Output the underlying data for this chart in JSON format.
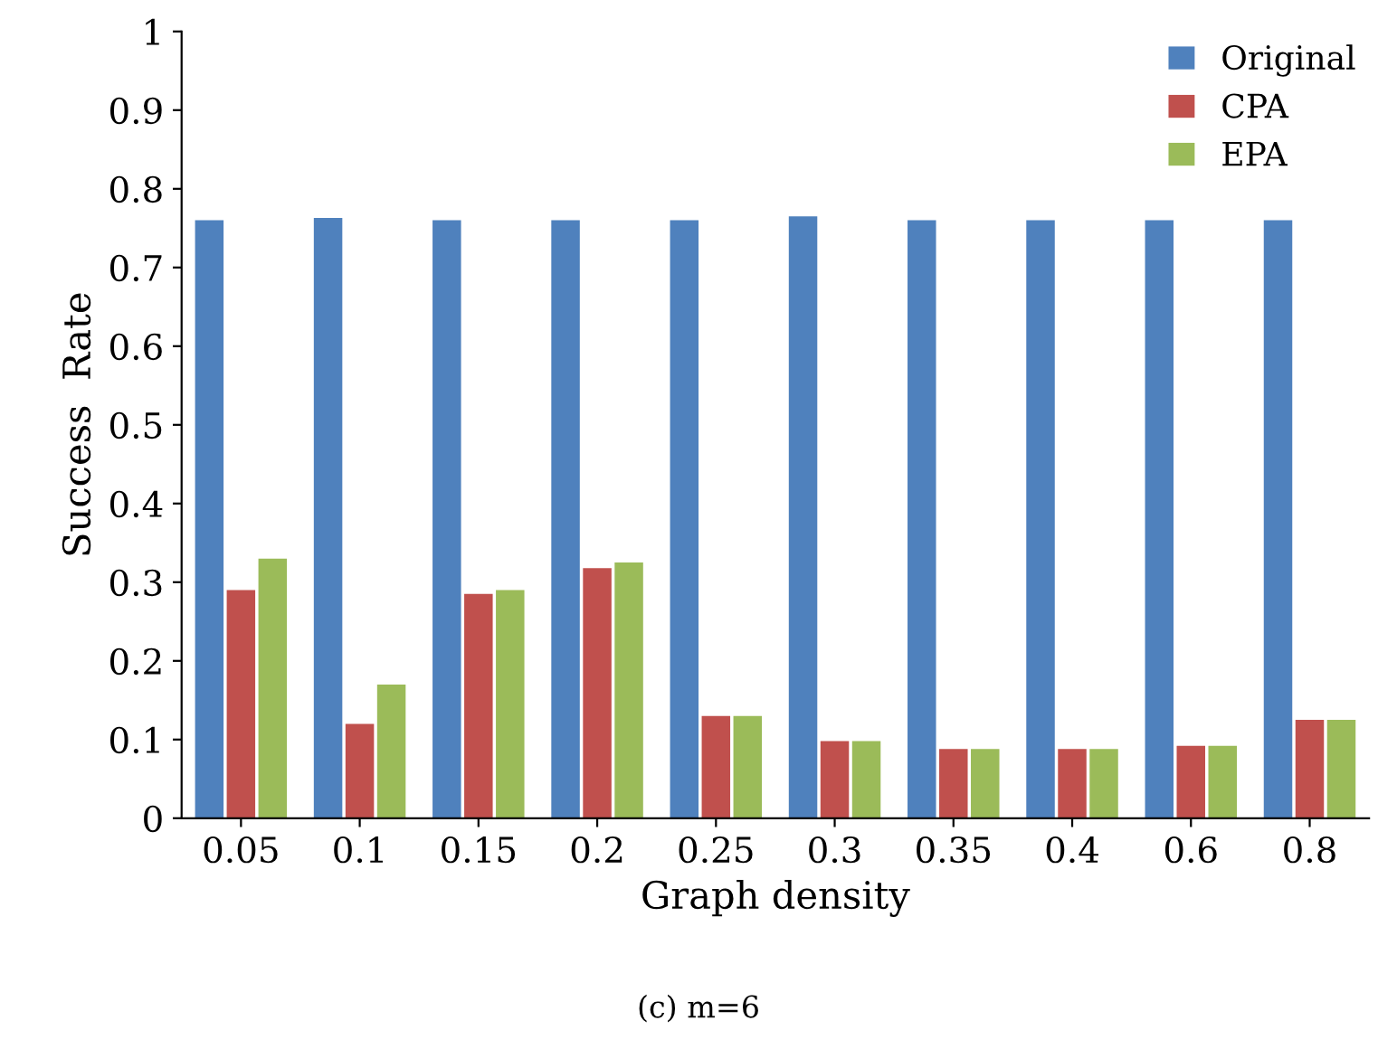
{
  "chart_data": {
    "type": "bar",
    "xlabel": "Graph density",
    "ylabel": "Success  Rate",
    "categories": [
      "0.05",
      "0.1",
      "0.15",
      "0.2",
      "0.25",
      "0.3",
      "0.35",
      "0.4",
      "0.6",
      "0.8"
    ],
    "series": [
      {
        "name": "Original",
        "color": "#4f81bd",
        "values": [
          0.76,
          0.763,
          0.76,
          0.76,
          0.76,
          0.765,
          0.76,
          0.76,
          0.76,
          0.76
        ]
      },
      {
        "name": "CPA",
        "color": "#c0504d",
        "values": [
          0.29,
          0.12,
          0.285,
          0.318,
          0.13,
          0.098,
          0.088,
          0.088,
          0.092,
          0.125
        ]
      },
      {
        "name": "EPA",
        "color": "#9bbb59",
        "values": [
          0.33,
          0.17,
          0.29,
          0.325,
          0.13,
          0.098,
          0.088,
          0.088,
          0.092,
          0.125
        ]
      }
    ],
    "ylim": [
      0,
      1
    ],
    "yticks": [
      0,
      0.1,
      0.2,
      0.3,
      0.4,
      0.5,
      0.6,
      0.7,
      0.8,
      0.9,
      1
    ],
    "grid": false,
    "legend": "top right",
    "annotations": [
      "(c) m=6"
    ]
  }
}
